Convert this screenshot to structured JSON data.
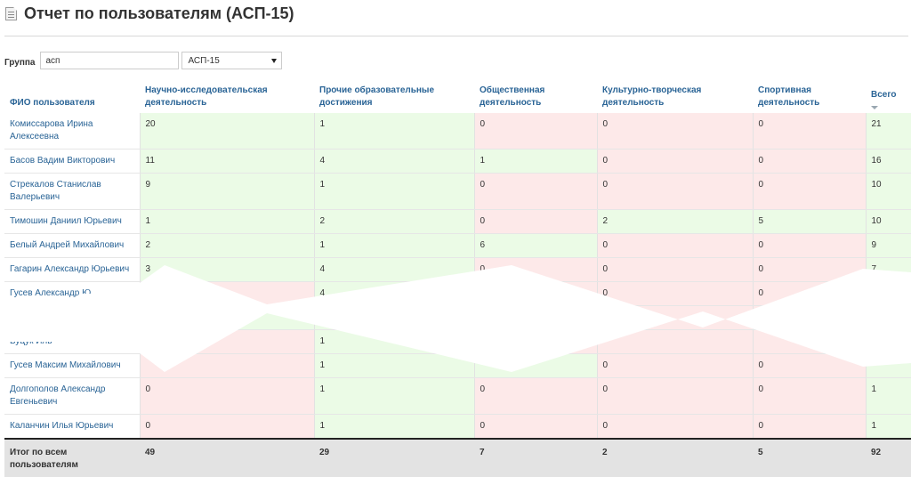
{
  "page": {
    "title": "Отчет по пользователям (АСП-15)"
  },
  "filter": {
    "label": "Группа",
    "input_value": "асп",
    "select_value": "АСП-15"
  },
  "table": {
    "headers": {
      "name": "ФИО пользователя",
      "research": "Научно-исследовательская деятельность",
      "edu": "Прочие образовательные достижения",
      "social": "Общественная деятельность",
      "culture": "Культурно-творческая деятельность",
      "sport": "Спортивная деятельность",
      "total": "Всего"
    },
    "rows": [
      {
        "name": "Комиссарова Ирина Алексеевна",
        "research": "20",
        "edu": "1",
        "social": "0",
        "culture": "0",
        "sport": "0",
        "total": "21"
      },
      {
        "name": "Басов Вадим Викторович",
        "research": "11",
        "edu": "4",
        "social": "1",
        "culture": "0",
        "sport": "0",
        "total": "16"
      },
      {
        "name": "Стрекалов Станислав Валерьевич",
        "research": "9",
        "edu": "1",
        "social": "0",
        "culture": "0",
        "sport": "0",
        "total": "10"
      },
      {
        "name": "Тимошин Даниил Юрьевич",
        "research": "1",
        "edu": "2",
        "social": "0",
        "culture": "2",
        "sport": "5",
        "total": "10"
      },
      {
        "name": "Белый Андрей Михайлович",
        "research": "2",
        "edu": "1",
        "social": "6",
        "culture": "0",
        "sport": "0",
        "total": "9"
      },
      {
        "name": "Гагарин Александр Юрьевич",
        "research": "3",
        "edu": "4",
        "social": "0",
        "culture": "0",
        "sport": "0",
        "total": "7"
      },
      {
        "name": "Гусев Александр Ю",
        "research": "",
        "edu": "4",
        "social": "",
        "culture": "0",
        "sport": "0",
        "total": ""
      },
      {
        "name": "",
        "research": "",
        "edu": "",
        "social": "",
        "culture": "",
        "sport": "",
        "total": ""
      },
      {
        "name": "Буцук Иль",
        "research": "",
        "edu": "1",
        "social": "",
        "culture": "",
        "sport": "",
        "total": ""
      },
      {
        "name": "Гусев Максим Михайлович",
        "research": "",
        "edu": "1",
        "social": "",
        "culture": "0",
        "sport": "0",
        "total": ""
      },
      {
        "name": "Долгополов Александр Евгеньевич",
        "research": "0",
        "edu": "1",
        "social": "0",
        "culture": "0",
        "sport": "0",
        "total": "1"
      },
      {
        "name": "Каланчин Илья Юрьевич",
        "research": "0",
        "edu": "1",
        "social": "0",
        "culture": "0",
        "sport": "0",
        "total": "1"
      }
    ],
    "totals": {
      "label": "Итог по всем пользователям",
      "research": "49",
      "edu": "29",
      "social": "7",
      "culture": "2",
      "sport": "5",
      "total": "92"
    }
  },
  "colors": {
    "positive": "#ebfbe6",
    "zero": "#fde9e9",
    "link": "#2a6496"
  }
}
